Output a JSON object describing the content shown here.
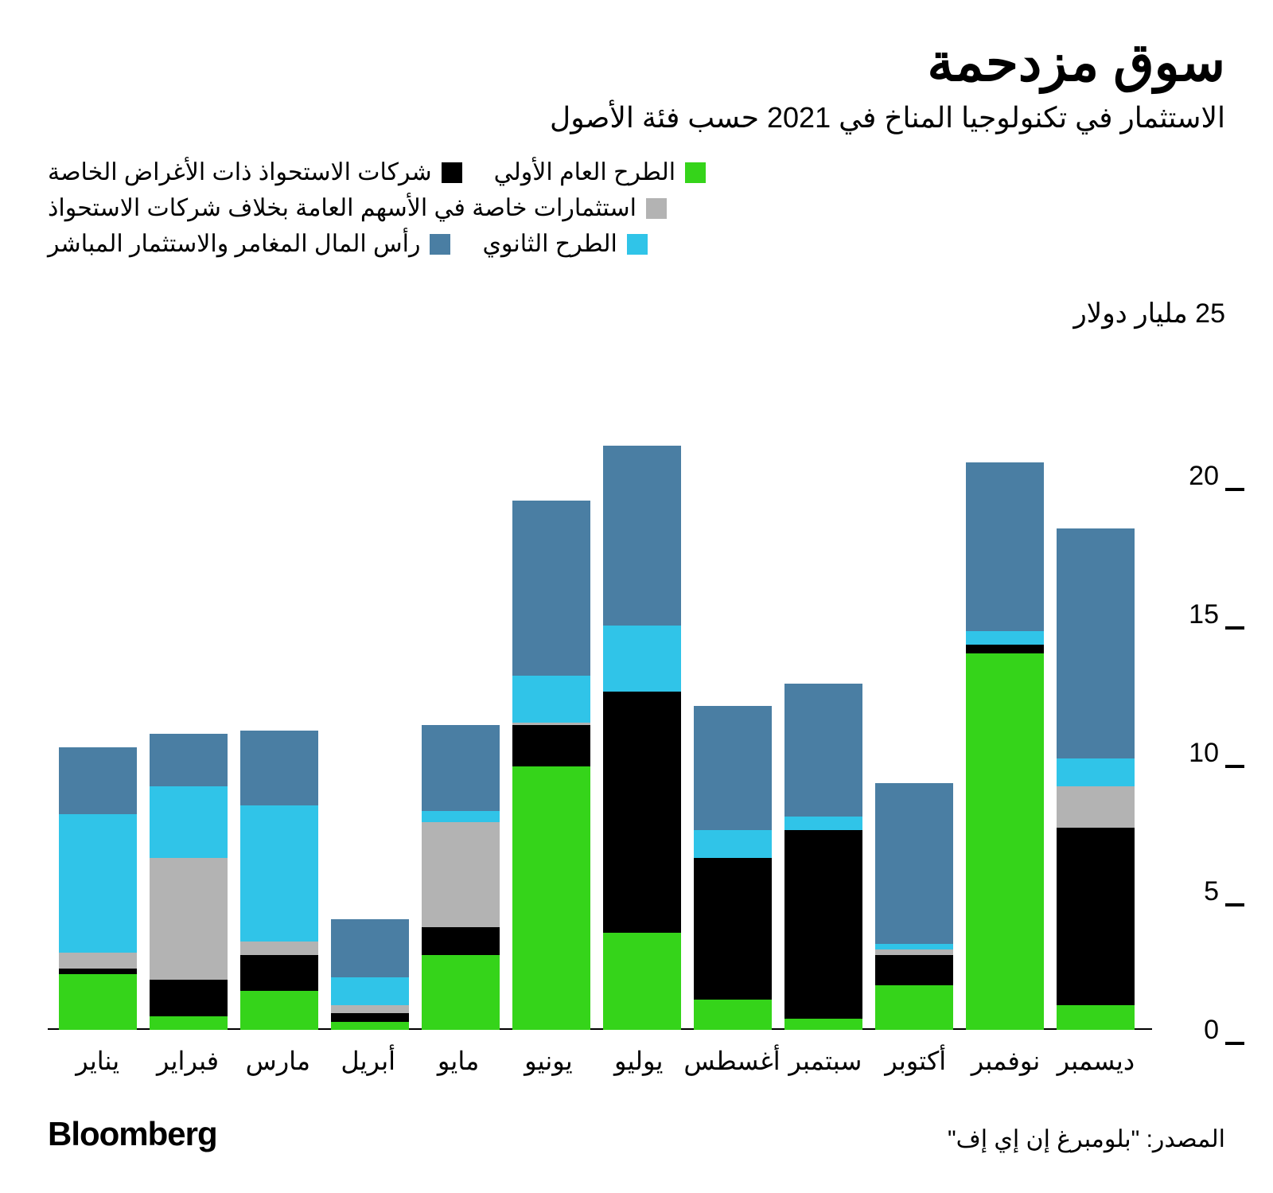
{
  "title": "سوق مزدحمة",
  "subtitle": "الاستثمار في تكنولوجيا المناخ في 2021 حسب فئة الأصول",
  "y_axis_label": "25 مليار دولار",
  "brand": "Bloomberg",
  "source": "المصدر: \"بلومبرغ إن إي إف\"",
  "legend": [
    {
      "label": "الطرح العام الأولي",
      "color": "#35d41a"
    },
    {
      "label": "شركات الاستحواذ ذات الأغراض الخاصة",
      "color": "#000000"
    },
    {
      "label": "استثمارات خاصة في الأسهم العامة بخلاف شركات الاستحواذ",
      "color": "#b3b3b3"
    },
    {
      "label": "الطرح الثانوي",
      "color": "#30c4e8"
    },
    {
      "label": "رأس المال المغامر والاستثمار المباشر",
      "color": "#4a7ea3"
    }
  ],
  "chart": {
    "type": "stacked-bar",
    "y_max": 25,
    "y_ticks": [
      0,
      5,
      10,
      15,
      20
    ],
    "tick_mark_color": "#000000",
    "baseline_color": "#000000",
    "background_color": "#ffffff",
    "series_order": [
      "ipo",
      "spac",
      "pipe",
      "secondary",
      "vc_pe"
    ],
    "series_colors": {
      "ipo": "#35d41a",
      "spac": "#000000",
      "pipe": "#b3b3b3",
      "secondary": "#30c4e8",
      "vc_pe": "#4a7ea3"
    },
    "categories": [
      "يناير",
      "فبراير",
      "مارس",
      "أبريل",
      "مايو",
      "يونيو",
      "يوليو",
      "أغسطس",
      "سبتمبر",
      "أكتوبر",
      "نوفمبر",
      "ديسمبر"
    ],
    "data": [
      {
        "ipo": 2.0,
        "spac": 0.2,
        "pipe": 0.6,
        "secondary": 5.0,
        "vc_pe": 2.4
      },
      {
        "ipo": 0.5,
        "spac": 1.3,
        "pipe": 4.4,
        "secondary": 2.6,
        "vc_pe": 1.9
      },
      {
        "ipo": 1.4,
        "spac": 1.3,
        "pipe": 0.5,
        "secondary": 4.9,
        "vc_pe": 2.7
      },
      {
        "ipo": 0.3,
        "spac": 0.3,
        "pipe": 0.3,
        "secondary": 1.0,
        "vc_pe": 2.1
      },
      {
        "ipo": 2.7,
        "spac": 1.0,
        "pipe": 3.8,
        "secondary": 0.4,
        "vc_pe": 3.1
      },
      {
        "ipo": 9.5,
        "spac": 1.5,
        "pipe": 0.1,
        "secondary": 1.7,
        "vc_pe": 6.3
      },
      {
        "ipo": 3.5,
        "spac": 8.7,
        "pipe": 0.0,
        "secondary": 2.4,
        "vc_pe": 6.5
      },
      {
        "ipo": 1.1,
        "spac": 5.1,
        "pipe": 0.0,
        "secondary": 1.0,
        "vc_pe": 4.5
      },
      {
        "ipo": 0.4,
        "spac": 6.8,
        "pipe": 0.0,
        "secondary": 0.5,
        "vc_pe": 4.8
      },
      {
        "ipo": 1.6,
        "spac": 1.1,
        "pipe": 0.2,
        "secondary": 0.2,
        "vc_pe": 5.8
      },
      {
        "ipo": 13.6,
        "spac": 0.3,
        "pipe": 0.0,
        "secondary": 0.5,
        "vc_pe": 6.1
      },
      {
        "ipo": 0.9,
        "spac": 6.4,
        "pipe": 1.5,
        "secondary": 1.0,
        "vc_pe": 8.3
      }
    ]
  }
}
